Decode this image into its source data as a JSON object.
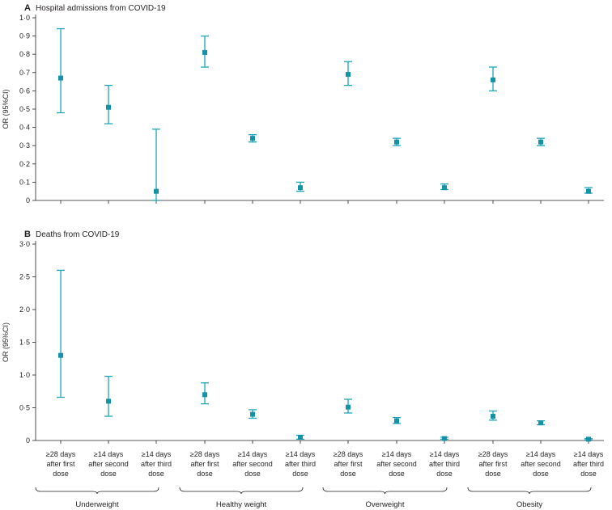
{
  "chart_data": [
    {
      "type": "scatter",
      "panel": "A",
      "title": "Hospital admissions from COVID-19",
      "ylabel": "OR (95%CI)",
      "ylim": [
        0,
        1.0
      ],
      "yticks": [
        "0",
        "0·1",
        "0·2",
        "0·3",
        "0·4",
        "0·5",
        "0·6",
        "0·7",
        "0·8",
        "0·9",
        "1·0"
      ],
      "points": [
        {
          "group": "Underweight",
          "category": "≥28 days after first dose",
          "or": 0.67,
          "lower": 0.48,
          "upper": 0.94
        },
        {
          "group": "Underweight",
          "category": "≥14 days after second dose",
          "or": 0.51,
          "lower": 0.42,
          "upper": 0.63
        },
        {
          "group": "Underweight",
          "category": "≥14 days after third dose",
          "or": 0.05,
          "lower": 0.0,
          "upper": 0.39
        },
        {
          "group": "Healthy weight",
          "category": "≥28 days after first dose",
          "or": 0.81,
          "lower": 0.73,
          "upper": 0.9
        },
        {
          "group": "Healthy weight",
          "category": "≥14 days after second dose",
          "or": 0.34,
          "lower": 0.32,
          "upper": 0.36
        },
        {
          "group": "Healthy weight",
          "category": "≥14 days after third dose",
          "or": 0.07,
          "lower": 0.05,
          "upper": 0.1
        },
        {
          "group": "Overweight",
          "category": "≥28 days after first dose",
          "or": 0.69,
          "lower": 0.63,
          "upper": 0.76
        },
        {
          "group": "Overweight",
          "category": "≥14 days after second dose",
          "or": 0.32,
          "lower": 0.3,
          "upper": 0.34
        },
        {
          "group": "Overweight",
          "category": "≥14 days after third dose",
          "or": 0.07,
          "lower": 0.06,
          "upper": 0.09
        },
        {
          "group": "Obesity",
          "category": "≥28 days after first dose",
          "or": 0.66,
          "lower": 0.6,
          "upper": 0.73
        },
        {
          "group": "Obesity",
          "category": "≥14 days after second dose",
          "or": 0.32,
          "lower": 0.3,
          "upper": 0.34
        },
        {
          "group": "Obesity",
          "category": "≥14 days after third dose",
          "or": 0.05,
          "lower": 0.04,
          "upper": 0.07
        }
      ]
    },
    {
      "type": "scatter",
      "panel": "B",
      "title": "Deaths from COVID-19",
      "ylabel": "OR (95%CI)",
      "ylim": [
        0,
        3.0
      ],
      "yticks": [
        "0",
        "0·5",
        "1·0",
        "1·5",
        "2·0",
        "2·5",
        "3·0"
      ],
      "points": [
        {
          "group": "Underweight",
          "category": "≥28 days after first dose",
          "or": 1.3,
          "lower": 0.66,
          "upper": 2.6
        },
        {
          "group": "Underweight",
          "category": "≥14 days after second dose",
          "or": 0.6,
          "lower": 0.37,
          "upper": 0.98
        },
        {
          "group": "Healthy weight",
          "category": "≥28 days after first dose",
          "or": 0.7,
          "lower": 0.56,
          "upper": 0.88
        },
        {
          "group": "Healthy weight",
          "category": "≥14 days after second dose",
          "or": 0.4,
          "lower": 0.34,
          "upper": 0.47
        },
        {
          "group": "Healthy weight",
          "category": "≥14 days after third dose",
          "or": 0.05,
          "lower": 0.02,
          "upper": 0.08
        },
        {
          "group": "Overweight",
          "category": "≥28 days after first dose",
          "or": 0.51,
          "lower": 0.42,
          "upper": 0.63
        },
        {
          "group": "Overweight",
          "category": "≥14 days after second dose",
          "or": 0.3,
          "lower": 0.26,
          "upper": 0.35
        },
        {
          "group": "Overweight",
          "category": "≥14 days after third dose",
          "or": 0.03,
          "lower": 0.02,
          "upper": 0.05
        },
        {
          "group": "Obesity",
          "category": "≥28 days after first dose",
          "or": 0.37,
          "lower": 0.31,
          "upper": 0.45
        },
        {
          "group": "Obesity",
          "category": "≥14 days after second dose",
          "or": 0.27,
          "lower": 0.24,
          "upper": 0.3
        },
        {
          "group": "Obesity",
          "category": "≥14 days after third dose",
          "or": 0.02,
          "lower": 0.01,
          "upper": 0.03
        }
      ]
    }
  ],
  "x_categories": [
    {
      "line1": "≥28 days",
      "line2": "after first",
      "line3": "dose"
    },
    {
      "line1": "≥14 days",
      "line2": "after second",
      "line3": "dose"
    },
    {
      "line1": "≥14 days",
      "line2": "after third",
      "line3": "dose"
    }
  ],
  "groups": [
    "Underweight",
    "Healthy weight",
    "Overweight",
    "Obesity"
  ],
  "colors": {
    "marker": "#1493a8",
    "errorbar": "#1aa7be",
    "axis": "#231f20"
  }
}
